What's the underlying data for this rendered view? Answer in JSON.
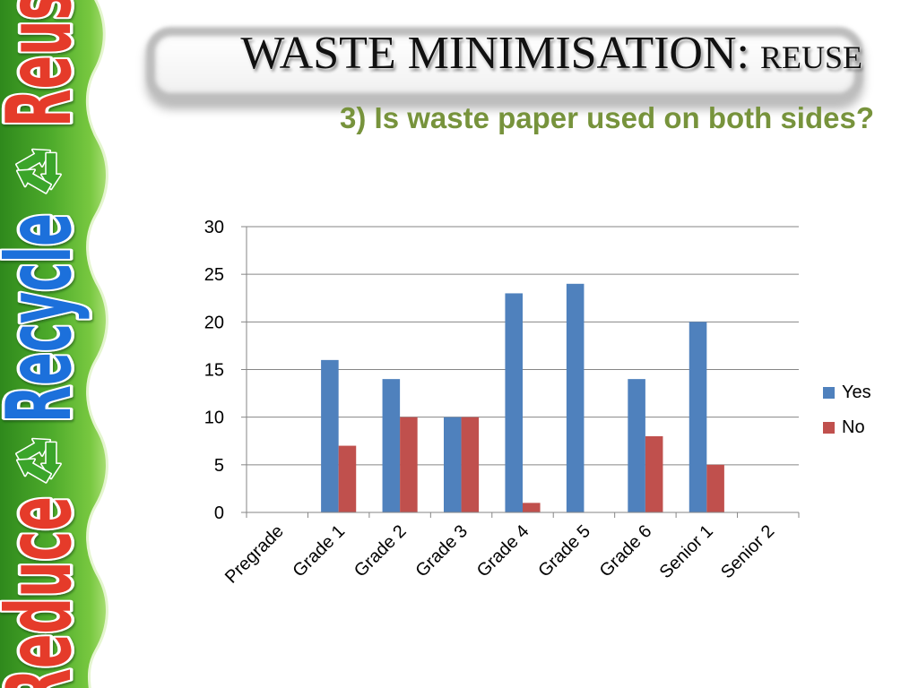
{
  "slide": {
    "title_main": "WASTE MINIMISATION:",
    "title_sub": "REUSE",
    "subtitle": "3) Is waste paper used on both sides?"
  },
  "sidebar": {
    "words": [
      "Reduce",
      "Recycle",
      "Reuse"
    ],
    "divider_icon": "recycle-icon"
  },
  "colors": {
    "background": "#FFFFFF",
    "title_text": "#111111",
    "subtitle_text": "#77933C",
    "sidebar_green": "#4EAB2B",
    "reduce_text": "#E53A2B",
    "recycle_text": "#1F6FDB",
    "reuse_text": "#E53A2B",
    "recycle_icon": "#3BA52A",
    "gridline": "#868686",
    "axis_text": "#000000"
  },
  "chart_data": {
    "type": "bar",
    "categories": [
      "Pregrade",
      "Grade 1",
      "Grade 2",
      "Grade 3",
      "Grade 4",
      "Grade 5",
      "Grade 6",
      "Senior 1",
      "Senior 2"
    ],
    "series": [
      {
        "name": "Yes",
        "values": [
          0,
          16,
          14,
          10,
          23,
          24,
          14,
          20,
          0
        ],
        "color": "#4F81BD"
      },
      {
        "name": "No",
        "values": [
          0,
          7,
          10,
          10,
          1,
          0,
          8,
          5,
          0
        ],
        "color": "#C0504D"
      }
    ],
    "title": "",
    "xlabel": "",
    "ylabel": "",
    "ylim": [
      0,
      30
    ],
    "yticks": [
      0,
      5,
      10,
      15,
      20,
      25,
      30
    ],
    "grid": true,
    "legend": "right"
  }
}
